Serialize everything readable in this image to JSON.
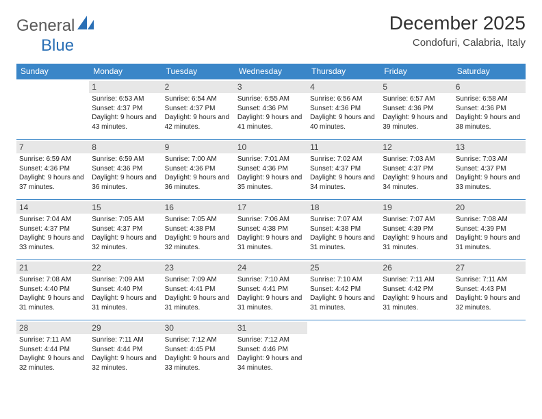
{
  "logo": {
    "part1": "General",
    "part2": "Blue"
  },
  "header": {
    "month_title": "December 2025",
    "location": "Condofuri, Calabria, Italy"
  },
  "colors": {
    "header_blue": "#3a86c8",
    "daynum_bg": "#e7e7e7",
    "logo_blue": "#2a6fb5",
    "text": "#222222"
  },
  "days_of_week": [
    "Sunday",
    "Monday",
    "Tuesday",
    "Wednesday",
    "Thursday",
    "Friday",
    "Saturday"
  ],
  "layout": {
    "first_weekday_index": 1,
    "days_in_month": 31,
    "columns": 7
  },
  "cells": [
    {
      "day": "",
      "sunrise": "",
      "sunset": "",
      "daylight": ""
    },
    {
      "day": "1",
      "sunrise": "Sunrise: 6:53 AM",
      "sunset": "Sunset: 4:37 PM",
      "daylight": "Daylight: 9 hours and 43 minutes."
    },
    {
      "day": "2",
      "sunrise": "Sunrise: 6:54 AM",
      "sunset": "Sunset: 4:37 PM",
      "daylight": "Daylight: 9 hours and 42 minutes."
    },
    {
      "day": "3",
      "sunrise": "Sunrise: 6:55 AM",
      "sunset": "Sunset: 4:36 PM",
      "daylight": "Daylight: 9 hours and 41 minutes."
    },
    {
      "day": "4",
      "sunrise": "Sunrise: 6:56 AM",
      "sunset": "Sunset: 4:36 PM",
      "daylight": "Daylight: 9 hours and 40 minutes."
    },
    {
      "day": "5",
      "sunrise": "Sunrise: 6:57 AM",
      "sunset": "Sunset: 4:36 PM",
      "daylight": "Daylight: 9 hours and 39 minutes."
    },
    {
      "day": "6",
      "sunrise": "Sunrise: 6:58 AM",
      "sunset": "Sunset: 4:36 PM",
      "daylight": "Daylight: 9 hours and 38 minutes."
    },
    {
      "day": "7",
      "sunrise": "Sunrise: 6:59 AM",
      "sunset": "Sunset: 4:36 PM",
      "daylight": "Daylight: 9 hours and 37 minutes."
    },
    {
      "day": "8",
      "sunrise": "Sunrise: 6:59 AM",
      "sunset": "Sunset: 4:36 PM",
      "daylight": "Daylight: 9 hours and 36 minutes."
    },
    {
      "day": "9",
      "sunrise": "Sunrise: 7:00 AM",
      "sunset": "Sunset: 4:36 PM",
      "daylight": "Daylight: 9 hours and 36 minutes."
    },
    {
      "day": "10",
      "sunrise": "Sunrise: 7:01 AM",
      "sunset": "Sunset: 4:36 PM",
      "daylight": "Daylight: 9 hours and 35 minutes."
    },
    {
      "day": "11",
      "sunrise": "Sunrise: 7:02 AM",
      "sunset": "Sunset: 4:37 PM",
      "daylight": "Daylight: 9 hours and 34 minutes."
    },
    {
      "day": "12",
      "sunrise": "Sunrise: 7:03 AM",
      "sunset": "Sunset: 4:37 PM",
      "daylight": "Daylight: 9 hours and 34 minutes."
    },
    {
      "day": "13",
      "sunrise": "Sunrise: 7:03 AM",
      "sunset": "Sunset: 4:37 PM",
      "daylight": "Daylight: 9 hours and 33 minutes."
    },
    {
      "day": "14",
      "sunrise": "Sunrise: 7:04 AM",
      "sunset": "Sunset: 4:37 PM",
      "daylight": "Daylight: 9 hours and 33 minutes."
    },
    {
      "day": "15",
      "sunrise": "Sunrise: 7:05 AM",
      "sunset": "Sunset: 4:37 PM",
      "daylight": "Daylight: 9 hours and 32 minutes."
    },
    {
      "day": "16",
      "sunrise": "Sunrise: 7:05 AM",
      "sunset": "Sunset: 4:38 PM",
      "daylight": "Daylight: 9 hours and 32 minutes."
    },
    {
      "day": "17",
      "sunrise": "Sunrise: 7:06 AM",
      "sunset": "Sunset: 4:38 PM",
      "daylight": "Daylight: 9 hours and 31 minutes."
    },
    {
      "day": "18",
      "sunrise": "Sunrise: 7:07 AM",
      "sunset": "Sunset: 4:38 PM",
      "daylight": "Daylight: 9 hours and 31 minutes."
    },
    {
      "day": "19",
      "sunrise": "Sunrise: 7:07 AM",
      "sunset": "Sunset: 4:39 PM",
      "daylight": "Daylight: 9 hours and 31 minutes."
    },
    {
      "day": "20",
      "sunrise": "Sunrise: 7:08 AM",
      "sunset": "Sunset: 4:39 PM",
      "daylight": "Daylight: 9 hours and 31 minutes."
    },
    {
      "day": "21",
      "sunrise": "Sunrise: 7:08 AM",
      "sunset": "Sunset: 4:40 PM",
      "daylight": "Daylight: 9 hours and 31 minutes."
    },
    {
      "day": "22",
      "sunrise": "Sunrise: 7:09 AM",
      "sunset": "Sunset: 4:40 PM",
      "daylight": "Daylight: 9 hours and 31 minutes."
    },
    {
      "day": "23",
      "sunrise": "Sunrise: 7:09 AM",
      "sunset": "Sunset: 4:41 PM",
      "daylight": "Daylight: 9 hours and 31 minutes."
    },
    {
      "day": "24",
      "sunrise": "Sunrise: 7:10 AM",
      "sunset": "Sunset: 4:41 PM",
      "daylight": "Daylight: 9 hours and 31 minutes."
    },
    {
      "day": "25",
      "sunrise": "Sunrise: 7:10 AM",
      "sunset": "Sunset: 4:42 PM",
      "daylight": "Daylight: 9 hours and 31 minutes."
    },
    {
      "day": "26",
      "sunrise": "Sunrise: 7:11 AM",
      "sunset": "Sunset: 4:42 PM",
      "daylight": "Daylight: 9 hours and 31 minutes."
    },
    {
      "day": "27",
      "sunrise": "Sunrise: 7:11 AM",
      "sunset": "Sunset: 4:43 PM",
      "daylight": "Daylight: 9 hours and 32 minutes."
    },
    {
      "day": "28",
      "sunrise": "Sunrise: 7:11 AM",
      "sunset": "Sunset: 4:44 PM",
      "daylight": "Daylight: 9 hours and 32 minutes."
    },
    {
      "day": "29",
      "sunrise": "Sunrise: 7:11 AM",
      "sunset": "Sunset: 4:44 PM",
      "daylight": "Daylight: 9 hours and 32 minutes."
    },
    {
      "day": "30",
      "sunrise": "Sunrise: 7:12 AM",
      "sunset": "Sunset: 4:45 PM",
      "daylight": "Daylight: 9 hours and 33 minutes."
    },
    {
      "day": "31",
      "sunrise": "Sunrise: 7:12 AM",
      "sunset": "Sunset: 4:46 PM",
      "daylight": "Daylight: 9 hours and 34 minutes."
    },
    {
      "day": "",
      "sunrise": "",
      "sunset": "",
      "daylight": ""
    },
    {
      "day": "",
      "sunrise": "",
      "sunset": "",
      "daylight": ""
    },
    {
      "day": "",
      "sunrise": "",
      "sunset": "",
      "daylight": ""
    }
  ]
}
